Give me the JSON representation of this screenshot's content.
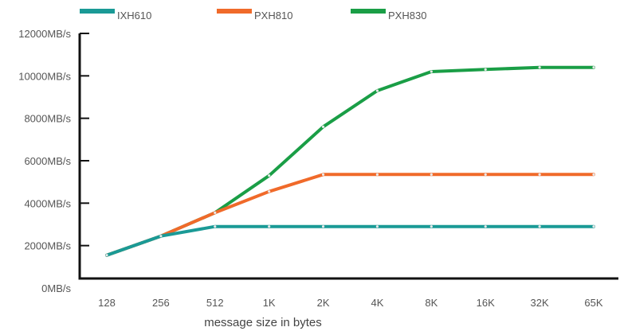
{
  "chart_data": {
    "type": "line",
    "xlabel": "message size in bytes",
    "ylabel": "",
    "categories": [
      "128",
      "256",
      "512",
      "1K",
      "2K",
      "4K",
      "8K",
      "16K",
      "32K",
      "65K"
    ],
    "y_ticks": [
      "0MB/s",
      "2000MB/s",
      "4000MB/s",
      "6000MB/s",
      "8000MB/s",
      "10000MB/s",
      "12000MB/s"
    ],
    "ylim": [
      0,
      12000
    ],
    "grid": false,
    "legend_position": "top",
    "series": [
      {
        "name": "IXH610",
        "color": "#1a9a96",
        "values": [
          1550,
          2450,
          2900,
          2900,
          2900,
          2900,
          2900,
          2900,
          2900,
          2900
        ]
      },
      {
        "name": "PXH810",
        "color": "#f06a2a",
        "values": [
          1550,
          2450,
          3550,
          4550,
          5350,
          5350,
          5350,
          5350,
          5350,
          5350
        ]
      },
      {
        "name": "PXH830",
        "color": "#1a9e46",
        "values": [
          1550,
          2450,
          3550,
          5300,
          7600,
          9300,
          10200,
          10300,
          10400,
          10400
        ]
      }
    ]
  }
}
